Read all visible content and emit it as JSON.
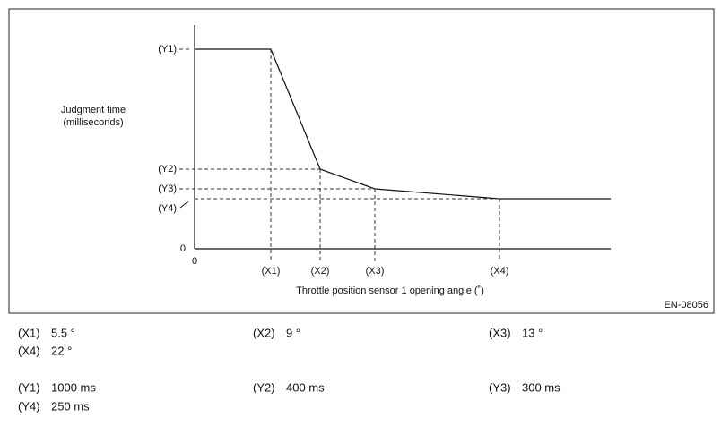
{
  "figure": {
    "y_axis_label": [
      "Judgment time",
      "(milliseconds)"
    ],
    "y_origin": "0",
    "x_origin": "0",
    "y_labels": [
      "(Y1)",
      "(Y2)",
      "(Y3)",
      "(Y4)"
    ],
    "x_labels": [
      "(X1)",
      "(X2)",
      "(X3)",
      "(X4)"
    ],
    "x_axis_title": "Throttle position sensor 1 opening angle (˚)",
    "code": "EN-08056"
  },
  "legend": {
    "rows": [
      [
        {
          "key": "(X1)",
          "value": "5.5 °"
        },
        {
          "key": "(X2)",
          "value": "9 °"
        },
        {
          "key": "(X3)",
          "value": "13 °"
        }
      ],
      [
        {
          "key": "(X4)",
          "value": "22 °"
        }
      ],
      [
        {
          "key": "(Y1)",
          "value": "1000 ms"
        },
        {
          "key": "(Y2)",
          "value": "400 ms"
        },
        {
          "key": "(Y3)",
          "value": "300 ms"
        }
      ],
      [
        {
          "key": "(Y4)",
          "value": "250 ms"
        }
      ]
    ]
  }
}
